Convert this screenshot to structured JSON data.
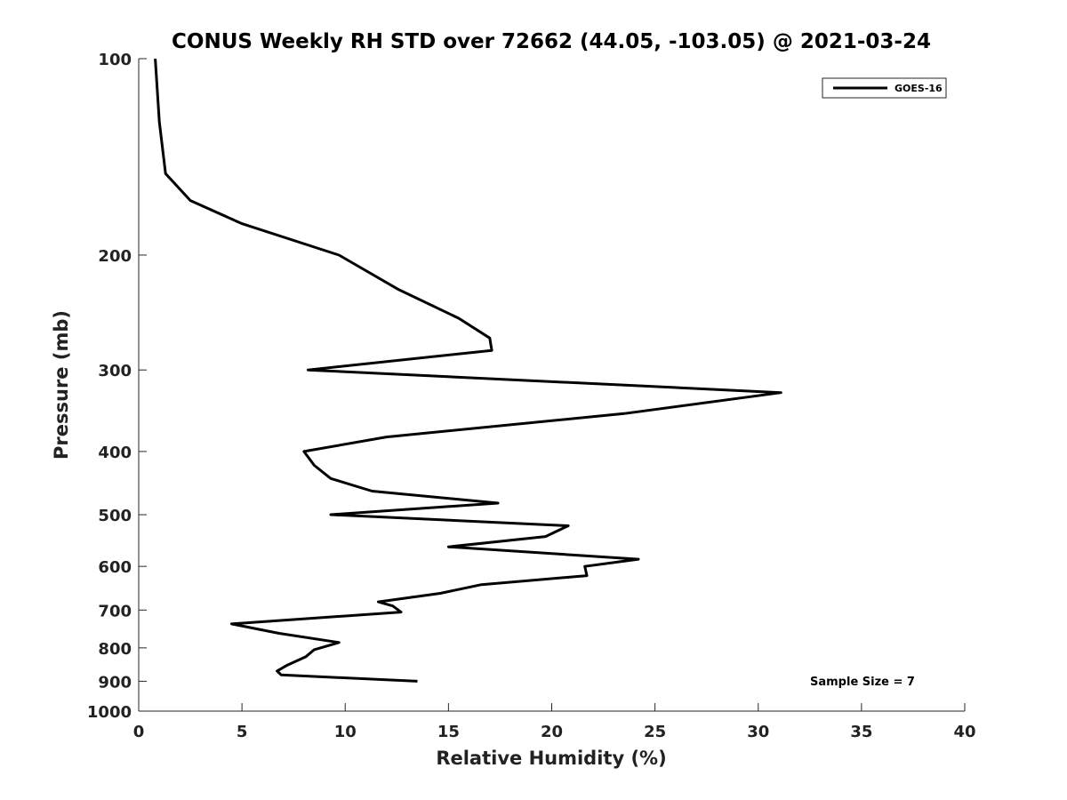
{
  "chart_data": {
    "type": "line",
    "title": "CONUS Weekly RH STD over 72662 (44.05, -103.05) @ 2021-03-24",
    "xlabel": "Relative Humidity (%)",
    "ylabel": "Pressure (mb)",
    "xlim": [
      0,
      40
    ],
    "ylim": [
      100,
      1000
    ],
    "y_scale": "log",
    "y_reversed": true,
    "xticks": [
      0,
      5,
      10,
      15,
      20,
      25,
      30,
      35,
      40
    ],
    "yticks": [
      100,
      200,
      300,
      400,
      500,
      600,
      700,
      800,
      900,
      1000
    ],
    "grid": false,
    "legend_position": "top-right",
    "line_color": "#000000",
    "annotation": "Sample Size = 7",
    "series": [
      {
        "name": "GOES-16",
        "points": [
          {
            "p": 100,
            "rh": 0.8
          },
          {
            "p": 125,
            "rh": 1.0
          },
          {
            "p": 150,
            "rh": 1.3
          },
          {
            "p": 165,
            "rh": 2.5
          },
          {
            "p": 179,
            "rh": 5.0
          },
          {
            "p": 200,
            "rh": 9.7
          },
          {
            "p": 226,
            "rh": 12.6
          },
          {
            "p": 250,
            "rh": 15.5
          },
          {
            "p": 268,
            "rh": 17.0
          },
          {
            "p": 280,
            "rh": 17.1
          },
          {
            "p": 300,
            "rh": 8.2
          },
          {
            "p": 325,
            "rh": 31.1
          },
          {
            "p": 350,
            "rh": 23.5
          },
          {
            "p": 380,
            "rh": 12.0
          },
          {
            "p": 400,
            "rh": 8.0
          },
          {
            "p": 420,
            "rh": 8.5
          },
          {
            "p": 440,
            "rh": 9.3
          },
          {
            "p": 460,
            "rh": 11.3
          },
          {
            "p": 480,
            "rh": 17.4
          },
          {
            "p": 500,
            "rh": 9.3
          },
          {
            "p": 520,
            "rh": 20.8
          },
          {
            "p": 540,
            "rh": 19.7
          },
          {
            "p": 560,
            "rh": 15.0
          },
          {
            "p": 585,
            "rh": 24.2
          },
          {
            "p": 600,
            "rh": 21.6
          },
          {
            "p": 620,
            "rh": 21.7
          },
          {
            "p": 640,
            "rh": 16.6
          },
          {
            "p": 660,
            "rh": 14.6
          },
          {
            "p": 680,
            "rh": 11.6
          },
          {
            "p": 690,
            "rh": 12.3
          },
          {
            "p": 705,
            "rh": 12.7
          },
          {
            "p": 735,
            "rh": 4.5
          },
          {
            "p": 760,
            "rh": 6.8
          },
          {
            "p": 785,
            "rh": 9.7
          },
          {
            "p": 805,
            "rh": 8.5
          },
          {
            "p": 825,
            "rh": 8.1
          },
          {
            "p": 850,
            "rh": 7.2
          },
          {
            "p": 868,
            "rh": 6.7
          },
          {
            "p": 880,
            "rh": 6.9
          },
          {
            "p": 900,
            "rh": 13.5
          }
        ]
      }
    ]
  }
}
